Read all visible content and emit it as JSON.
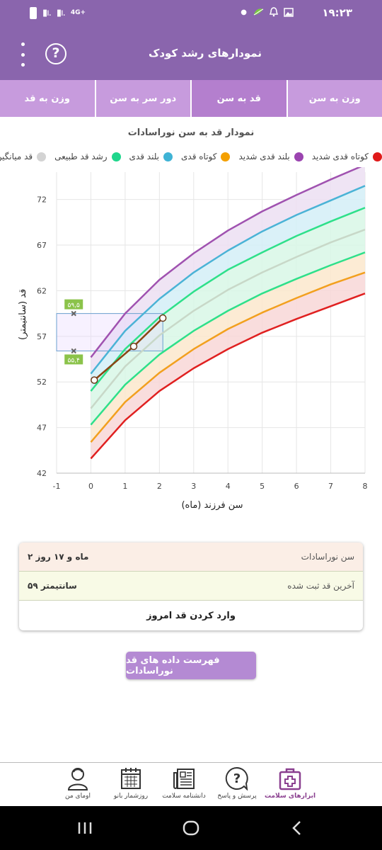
{
  "status_bar": {
    "time": "۱۹:۲۳",
    "network": "4G+"
  },
  "header": {
    "title": "نمودارهای رشد کودک",
    "help_icon": "help-icon",
    "menu_icon": "more-vert-icon"
  },
  "tabs": [
    {
      "label": "وزن به سن",
      "active": false
    },
    {
      "label": "قد به سن",
      "active": true
    },
    {
      "label": "دور سر به سن",
      "active": false
    },
    {
      "label": "وزن به قد",
      "active": false
    }
  ],
  "chart_data": {
    "type": "line",
    "title": "نمودار قد به سن نوراسادات",
    "xlabel": "سن فرزند (ماه)",
    "ylabel": "قد (سانتیمتر)",
    "xlim": [
      -1,
      8
    ],
    "ylim": [
      42,
      75
    ],
    "x_ticks": [
      "-1",
      "0",
      "1",
      "2",
      "3",
      "4",
      "5",
      "6",
      "7",
      "8"
    ],
    "y_ticks": [
      "42",
      "47",
      "52",
      "57",
      "62",
      "67",
      "72"
    ],
    "x": [
      0,
      1,
      2,
      3,
      4,
      5,
      6,
      7,
      8
    ],
    "series": [
      {
        "name": "کوتاه قدی شدید",
        "color": "#e02020",
        "values": [
          43.6,
          47.8,
          51.0,
          53.5,
          55.6,
          57.4,
          58.9,
          60.3,
          61.7
        ]
      },
      {
        "name": "کوتاه قدی",
        "color": "#f2a01e",
        "values": [
          45.4,
          49.8,
          53.0,
          55.6,
          57.8,
          59.6,
          61.2,
          62.7,
          64.0
        ]
      },
      {
        "values": [
          47.3,
          51.7,
          55.0,
          57.6,
          59.8,
          61.7,
          63.3,
          64.8,
          66.2
        ]
      },
      {
        "name": "قد میانگین",
        "color": "#cfcfcf",
        "values": [
          49.1,
          53.7,
          57.1,
          59.8,
          62.1,
          64.0,
          65.7,
          67.3,
          68.7
        ]
      },
      {
        "values": [
          51.0,
          55.6,
          59.1,
          61.9,
          64.3,
          66.2,
          68.0,
          69.6,
          71.1
        ]
      },
      {
        "name": "بلند قدی",
        "color": "#4ab3d6",
        "values": [
          52.9,
          57.6,
          61.1,
          64.0,
          66.4,
          68.5,
          70.3,
          71.9,
          73.5
        ]
      },
      {
        "name": "بلند قدی شدید",
        "color": "#a052b0",
        "values": [
          54.7,
          59.5,
          63.2,
          66.1,
          68.6,
          70.7,
          72.5,
          74.2,
          75.8
        ]
      }
    ],
    "child_measurements": {
      "color": "#8b4513",
      "x": [
        0.1,
        1.25,
        2.1
      ],
      "y": [
        52.2,
        55.9,
        59.0
      ]
    },
    "highlight_range": {
      "x": [
        -1,
        2.1
      ],
      "y": [
        55.4,
        59.5
      ],
      "labels": [
        "۵۹,۵",
        "۵۵,۴"
      ]
    }
  },
  "legend": [
    {
      "label": "قد میانگین",
      "color": "#d3d3d3"
    },
    {
      "label": "رشد قد طبیعی",
      "color": "#1fd68c"
    },
    {
      "label": "بلند قدی",
      "color": "#3fb3d5"
    },
    {
      "label": "کوتاه قدی",
      "color": "#f4a000"
    },
    {
      "label": "بلند قدی شدید",
      "color": "#9b44b0"
    },
    {
      "label": "کوتاه قدی شدید",
      "color": "#e01a1a"
    }
  ],
  "info_card": {
    "age_label": "سن نوراسادات",
    "age_value": "۲ ماه و ۱۷ روز",
    "last_height_label": "آخرین قد ثبت شده",
    "last_height_value": "۵۹ سانتیمتر",
    "enter_button": "وارد کردن قد امروز"
  },
  "list_button": "فهرست داده های قد نوراسادات",
  "bottom_nav": [
    {
      "label": "ابزارهای سلامت",
      "icon": "medical-kit-icon",
      "active": true
    },
    {
      "label": "پرسش و پاسخ",
      "icon": "question-bubble-icon",
      "active": false
    },
    {
      "label": "دانشنامه سلامت",
      "icon": "newspaper-icon",
      "active": false
    },
    {
      "label": "روزشمار بانو",
      "icon": "calendar-icon",
      "active": false
    },
    {
      "label": "اومای من",
      "icon": "user-icon",
      "active": false
    }
  ]
}
